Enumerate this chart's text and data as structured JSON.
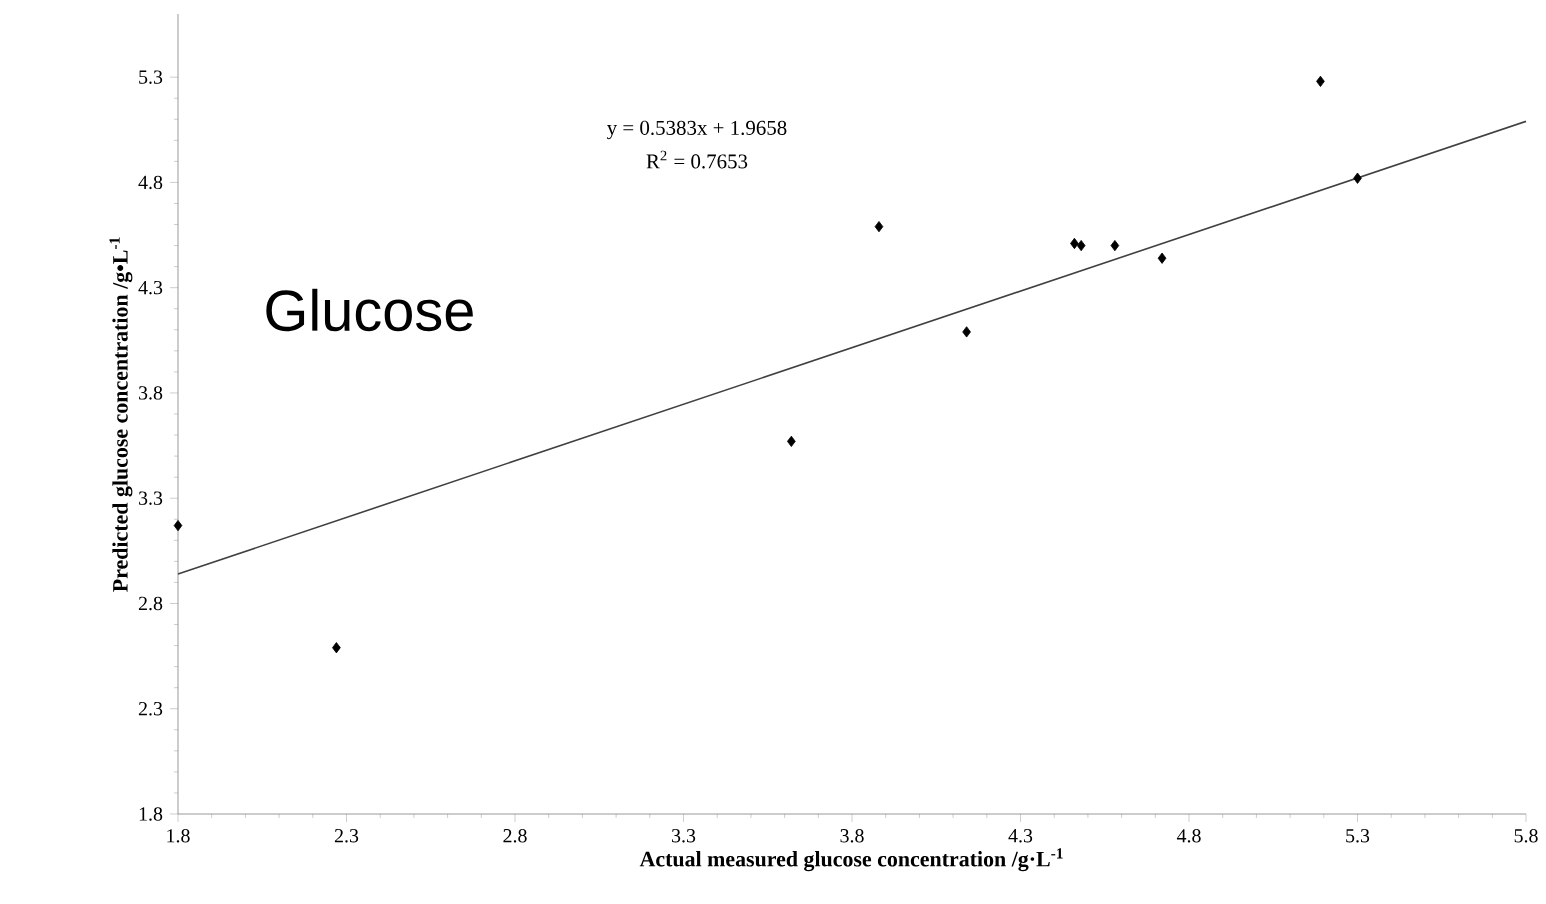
{
  "chart_data": {
    "type": "scatter",
    "xlabel": "Actual measured glucose concentration /g·L$^{-1}$",
    "ylabel": "Predicted glucose concentration /g•L$^{-1}$",
    "annotations": [
      "y = 0.5383x + 1.9658",
      "R$^{2}$ = 0.7653",
      "Glucose"
    ],
    "xlim": [
      1.8,
      5.8
    ],
    "ylim": [
      1.8,
      5.6
    ],
    "xticks": [
      1.8,
      2.3,
      2.8,
      3.3,
      3.8,
      4.3,
      4.8,
      5.3,
      5.8
    ],
    "yticks": [
      1.8,
      2.3,
      2.8,
      3.3,
      3.8,
      4.3,
      4.8,
      5.3
    ],
    "series": [
      {
        "marker": "diamond",
        "color": "#000000",
        "x": [
          1.8,
          2.27,
          3.62,
          3.88,
          4.14,
          4.46,
          4.48,
          4.58,
          4.72,
          5.19,
          5.3
        ],
        "values": [
          3.17,
          2.59,
          3.57,
          4.59,
          4.09,
          4.51,
          4.5,
          4.5,
          4.44,
          5.28,
          4.82
        ]
      },
      {
        "type": "line",
        "marker": "none",
        "color": "#404040",
        "x": [
          1.8,
          5.8
        ],
        "values": [
          2.94,
          5.09
        ]
      }
    ]
  }
}
